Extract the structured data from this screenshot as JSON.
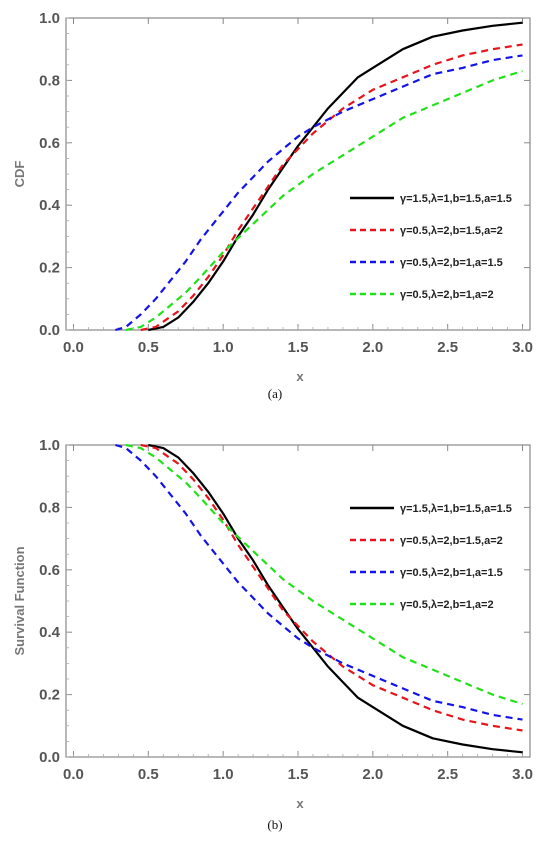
{
  "chart_data": [
    {
      "type": "line",
      "panel_label": "(a)",
      "xlabel": "x",
      "ylabel": "CDF",
      "xlim": [
        -0.05,
        3.05
      ],
      "ylim": [
        0,
        1
      ],
      "xticks": [
        "0.0",
        "0.5",
        "1.0",
        "1.5",
        "2.0",
        "2.5",
        "3.0"
      ],
      "yticks": [
        "0.0",
        "0.2",
        "0.4",
        "0.6",
        "0.8",
        "1.0"
      ],
      "legend_position": "center-right",
      "grid": false,
      "series": [
        {
          "name": "γ=1.5,λ=1,b=1.5,a=1.5",
          "color": "#000000",
          "dashed": false,
          "x": [
            0.5,
            0.6,
            0.7,
            0.8,
            0.9,
            1.0,
            1.1,
            1.2,
            1.3,
            1.4,
            1.5,
            1.6,
            1.7,
            1.8,
            1.9,
            2.0,
            2.2,
            2.4,
            2.6,
            2.8,
            3.0
          ],
          "y": [
            0.0,
            0.01,
            0.04,
            0.09,
            0.15,
            0.22,
            0.3,
            0.37,
            0.45,
            0.52,
            0.59,
            0.65,
            0.71,
            0.76,
            0.81,
            0.84,
            0.9,
            0.94,
            0.96,
            0.975,
            0.985
          ]
        },
        {
          "name": "γ=0.5,λ=2,b=1.5,a=2",
          "color": "#e8141b",
          "dashed": true,
          "x": [
            0.45,
            0.55,
            0.7,
            0.8,
            0.9,
            1.0,
            1.1,
            1.2,
            1.3,
            1.4,
            1.5,
            1.6,
            1.7,
            1.8,
            2.0,
            2.2,
            2.4,
            2.6,
            2.8,
            3.0
          ],
          "y": [
            0.0,
            0.01,
            0.06,
            0.11,
            0.17,
            0.24,
            0.32,
            0.39,
            0.46,
            0.53,
            0.58,
            0.63,
            0.67,
            0.71,
            0.77,
            0.81,
            0.85,
            0.88,
            0.9,
            0.915
          ]
        },
        {
          "name": "γ=0.5,λ=2,b=1,a=1.5",
          "color": "#1414e8",
          "dashed": true,
          "x": [
            0.28,
            0.35,
            0.45,
            0.55,
            0.65,
            0.75,
            0.85,
            1.0,
            1.1,
            1.2,
            1.3,
            1.4,
            1.5,
            1.6,
            1.8,
            2.0,
            2.2,
            2.4,
            2.6,
            2.8,
            3.0
          ],
          "y": [
            0.0,
            0.01,
            0.05,
            0.1,
            0.16,
            0.22,
            0.29,
            0.38,
            0.44,
            0.49,
            0.54,
            0.58,
            0.62,
            0.65,
            0.7,
            0.74,
            0.78,
            0.82,
            0.84,
            0.865,
            0.88
          ]
        },
        {
          "name": "γ=0.5,λ=2,b=1,a=2",
          "color": "#22e01b",
          "dashed": true,
          "x": [
            0.35,
            0.45,
            0.55,
            0.65,
            0.75,
            0.85,
            1.0,
            1.2,
            1.4,
            1.6,
            1.8,
            2.0,
            2.2,
            2.4,
            2.6,
            2.8,
            3.0
          ],
          "y": [
            0.0,
            0.01,
            0.04,
            0.08,
            0.12,
            0.17,
            0.25,
            0.34,
            0.43,
            0.5,
            0.56,
            0.62,
            0.68,
            0.72,
            0.76,
            0.8,
            0.83
          ]
        }
      ]
    },
    {
      "type": "line",
      "panel_label": "(b)",
      "xlabel": "x",
      "ylabel": "Survival Function",
      "xlim": [
        -0.05,
        3.05
      ],
      "ylim": [
        0,
        1
      ],
      "xticks": [
        "0.0",
        "0.5",
        "1.0",
        "1.5",
        "2.0",
        "2.5",
        "3.0"
      ],
      "yticks": [
        "0.0",
        "0.2",
        "0.4",
        "0.6",
        "0.8",
        "1.0"
      ],
      "legend_position": "top-right",
      "grid": false,
      "series": [
        {
          "name": "γ=1.5,λ=1,b=1.5,a=1.5",
          "color": "#000000",
          "dashed": false,
          "x": [
            0.5,
            0.6,
            0.7,
            0.8,
            0.9,
            1.0,
            1.1,
            1.2,
            1.3,
            1.4,
            1.5,
            1.6,
            1.7,
            1.8,
            1.9,
            2.0,
            2.2,
            2.4,
            2.6,
            2.8,
            3.0
          ],
          "y": [
            1.0,
            0.99,
            0.96,
            0.91,
            0.85,
            0.78,
            0.7,
            0.63,
            0.55,
            0.48,
            0.41,
            0.35,
            0.29,
            0.24,
            0.19,
            0.16,
            0.1,
            0.06,
            0.04,
            0.025,
            0.015
          ]
        },
        {
          "name": "γ=0.5,λ=2,b=1.5,a=2",
          "color": "#e8141b",
          "dashed": true,
          "x": [
            0.45,
            0.55,
            0.7,
            0.8,
            0.9,
            1.0,
            1.1,
            1.2,
            1.3,
            1.4,
            1.5,
            1.6,
            1.7,
            1.8,
            2.0,
            2.2,
            2.4,
            2.6,
            2.8,
            3.0
          ],
          "y": [
            1.0,
            0.99,
            0.94,
            0.89,
            0.83,
            0.76,
            0.68,
            0.61,
            0.54,
            0.47,
            0.42,
            0.37,
            0.33,
            0.29,
            0.23,
            0.19,
            0.15,
            0.12,
            0.1,
            0.085
          ]
        },
        {
          "name": "γ=0.5,λ=2,b=1,a=1.5",
          "color": "#1414e8",
          "dashed": true,
          "x": [
            0.28,
            0.35,
            0.45,
            0.55,
            0.65,
            0.75,
            0.85,
            1.0,
            1.1,
            1.2,
            1.3,
            1.4,
            1.5,
            1.6,
            1.8,
            2.0,
            2.2,
            2.4,
            2.6,
            2.8,
            3.0
          ],
          "y": [
            1.0,
            0.99,
            0.95,
            0.9,
            0.84,
            0.78,
            0.71,
            0.62,
            0.56,
            0.51,
            0.46,
            0.42,
            0.38,
            0.35,
            0.3,
            0.26,
            0.22,
            0.18,
            0.16,
            0.135,
            0.12
          ]
        },
        {
          "name": "γ=0.5,λ=2,b=1,a=2",
          "color": "#22e01b",
          "dashed": true,
          "x": [
            0.35,
            0.45,
            0.55,
            0.65,
            0.75,
            0.85,
            1.0,
            1.2,
            1.4,
            1.6,
            1.8,
            2.0,
            2.2,
            2.4,
            2.6,
            2.8,
            3.0
          ],
          "y": [
            1.0,
            0.99,
            0.96,
            0.92,
            0.88,
            0.83,
            0.75,
            0.66,
            0.57,
            0.5,
            0.44,
            0.38,
            0.32,
            0.28,
            0.24,
            0.2,
            0.17
          ]
        }
      ]
    }
  ]
}
